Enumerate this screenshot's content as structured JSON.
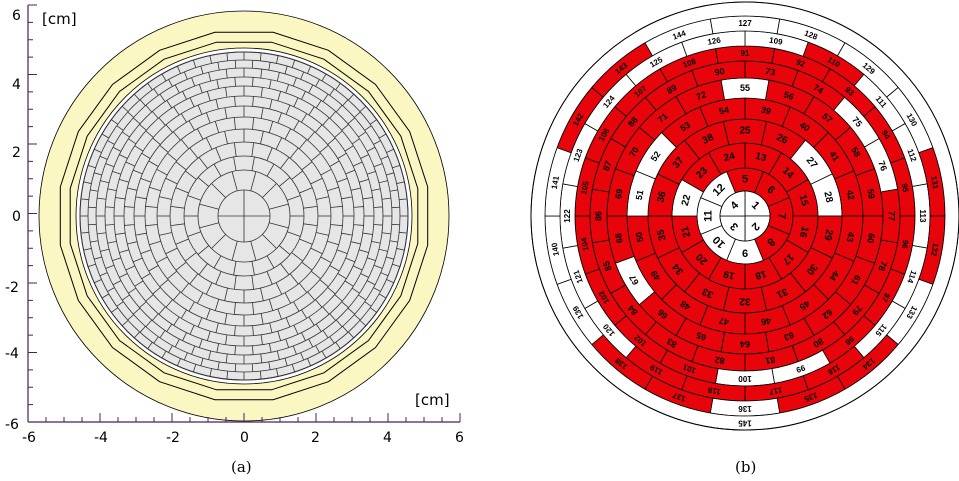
{
  "panel_a": {
    "caption": "(a)",
    "x_unit": "[cm]",
    "y_unit": "[cm]",
    "x_ticks": [
      "-6",
      "-4",
      "-2",
      "0",
      "2",
      "4",
      "6"
    ],
    "y_ticks": [
      "6",
      "4",
      "2",
      "0",
      "-2",
      "-4",
      "-6"
    ],
    "x_range": [
      -6,
      6
    ],
    "y_range": [
      -6,
      6
    ],
    "colors": {
      "outer_ring": "#fbf7c2",
      "cells": "#e6e6e6",
      "cell_lines": "#333333",
      "axes": "#4a2060"
    }
  },
  "panel_b": {
    "caption": "(b)",
    "colors": {
      "active": "#e8040b",
      "inactive": "#ffffff",
      "lines": "#000000"
    },
    "cell_labels": [
      "1",
      "2",
      "3",
      "4",
      "5",
      "6",
      "7",
      "8",
      "9",
      "10",
      "11",
      "12",
      "13",
      "14",
      "15",
      "16",
      "17",
      "18",
      "19",
      "20",
      "21",
      "22",
      "23",
      "24",
      "25",
      "26",
      "27",
      "28",
      "29",
      "30",
      "31",
      "32",
      "33",
      "34",
      "35",
      "36",
      "37",
      "38",
      "39",
      "40",
      "41",
      "42",
      "43",
      "44",
      "45",
      "46",
      "47",
      "48",
      "49",
      "50",
      "51",
      "52",
      "53",
      "54",
      "55",
      "56",
      "57",
      "58",
      "59",
      "60",
      "61",
      "62",
      "63",
      "64",
      "65",
      "66",
      "67",
      "68",
      "69",
      "70",
      "71",
      "72",
      "73",
      "74",
      "75",
      "76",
      "77",
      "78",
      "79",
      "80",
      "81",
      "82",
      "83",
      "84",
      "85",
      "86",
      "87",
      "88",
      "89",
      "90",
      "91",
      "92",
      "93",
      "94",
      "95",
      "96",
      "97",
      "98",
      "99",
      "100",
      "101",
      "102",
      "103",
      "104",
      "105",
      "106",
      "107",
      "108",
      "109",
      "110",
      "111",
      "112",
      "113",
      "114",
      "115",
      "116",
      "117",
      "118",
      "119",
      "120",
      "121",
      "122",
      "123",
      "124",
      "125",
      "126",
      "127",
      "128",
      "129",
      "130",
      "131",
      "132",
      "133",
      "134",
      "135",
      "136",
      "137",
      "138",
      "139",
      "140",
      "141",
      "142",
      "143",
      "144",
      "145"
    ]
  }
}
